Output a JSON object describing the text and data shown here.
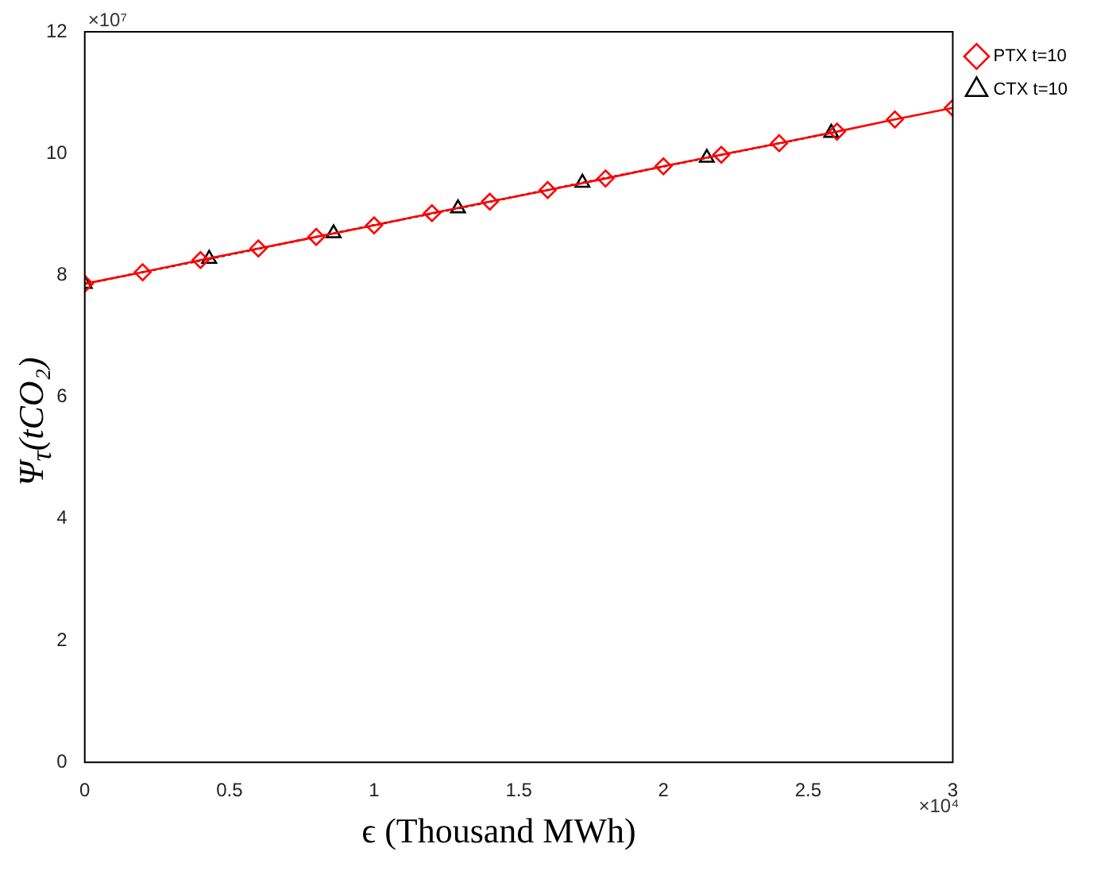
{
  "chart_data": {
    "type": "line",
    "xlabel": "ϵ (Thousand MWh)",
    "ylabel": "Ψ$_{τ}$(tCO₂)",
    "xlim": [
      0,
      3
    ],
    "xticks": [
      0,
      0.5,
      1,
      1.5,
      2,
      2.5,
      3
    ],
    "ylim": [
      0,
      12
    ],
    "yticks": [
      0,
      2,
      4,
      6,
      8,
      10,
      12
    ],
    "annotations": [
      "×10⁷",
      "×10⁴"
    ],
    "legend": "top right",
    "grid": false,
    "series": [
      {
        "name": "PTX t=10",
        "color": "#ff0000",
        "marker": "diamond",
        "line_style": "solid",
        "x": [
          0,
          0.2,
          0.4,
          0.6,
          0.8,
          1,
          1.2,
          1.4,
          1.6,
          1.8,
          2,
          2.2,
          2.4,
          2.6,
          2.8,
          3
        ],
        "values": [
          7.86,
          8.05,
          8.25,
          8.44,
          8.63,
          8.82,
          9.02,
          9.21,
          9.4,
          9.59,
          9.79,
          9.98,
          10.17,
          10.36,
          10.56,
          10.75
        ]
      },
      {
        "name": "CTX t=10",
        "color": "#000000",
        "marker": "triangle",
        "line_style": "dotted",
        "x": [
          0,
          0.43,
          0.86,
          1.29,
          1.72,
          2.15,
          2.58
        ],
        "values": [
          7.86,
          8.27,
          8.69,
          9.1,
          9.52,
          9.93,
          10.34
        ]
      }
    ]
  }
}
